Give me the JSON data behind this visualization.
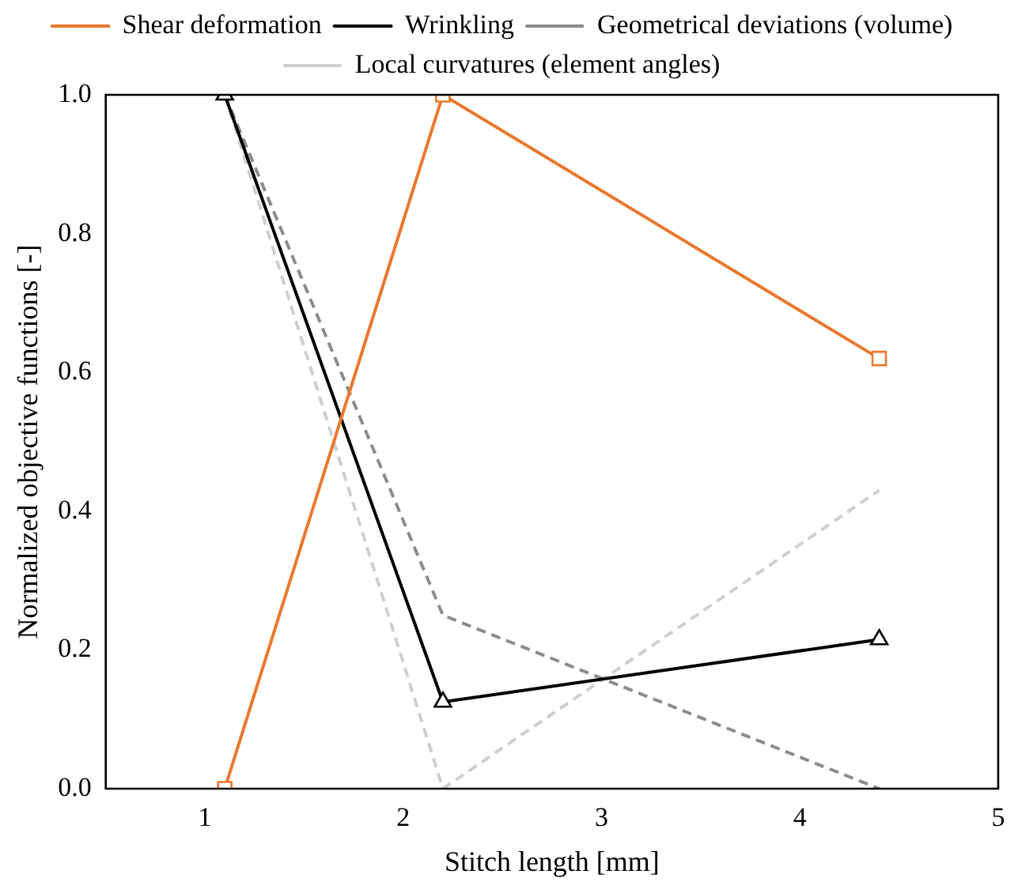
{
  "chart_data": {
    "type": "line",
    "xlabel": "Stitch length [mm]",
    "ylabel": "Normalized objective functions [-]",
    "xlim": [
      0.5,
      5
    ],
    "xticks": [
      1,
      2,
      3,
      4,
      5
    ],
    "ylim": [
      0,
      1
    ],
    "yticks": [
      {
        "value": 0,
        "label": "0.0"
      },
      {
        "value": 0.2,
        "label": "0.2"
      },
      {
        "value": 0.4,
        "label": "0.4"
      },
      {
        "value": 0.6,
        "label": "0.6"
      },
      {
        "value": 0.8,
        "label": "0.8"
      },
      {
        "value": 1,
        "label": "1.0"
      }
    ],
    "grid": false,
    "legend": "top",
    "series": [
      {
        "name": "Shear deformation",
        "color": "#e8792f",
        "x": [
          1.1,
          2.2,
          4.4
        ],
        "values": [
          0,
          1,
          0.62
        ],
        "marker": "square",
        "line_style": "solid"
      },
      {
        "name": "Wrinkling",
        "color": "#000000",
        "x": [
          1.1,
          2.2,
          4.4
        ],
        "values": [
          1,
          0.125,
          0.215
        ],
        "marker": "triangle",
        "line_style": "solid"
      },
      {
        "name": "Geometrical deviations (volume)",
        "color": "#8c8c8c",
        "x": [
          1.1,
          2.2,
          4.4
        ],
        "values": [
          1,
          0.25,
          0
        ],
        "marker": "none",
        "line_style": "dashed"
      },
      {
        "name": "Local curvatures (element angles)",
        "color": "#cfcfcf",
        "x": [
          1.1,
          2.2,
          4.4
        ],
        "values": [
          1,
          0,
          0.43
        ],
        "marker": "none",
        "line_style": "dashed"
      }
    ]
  }
}
